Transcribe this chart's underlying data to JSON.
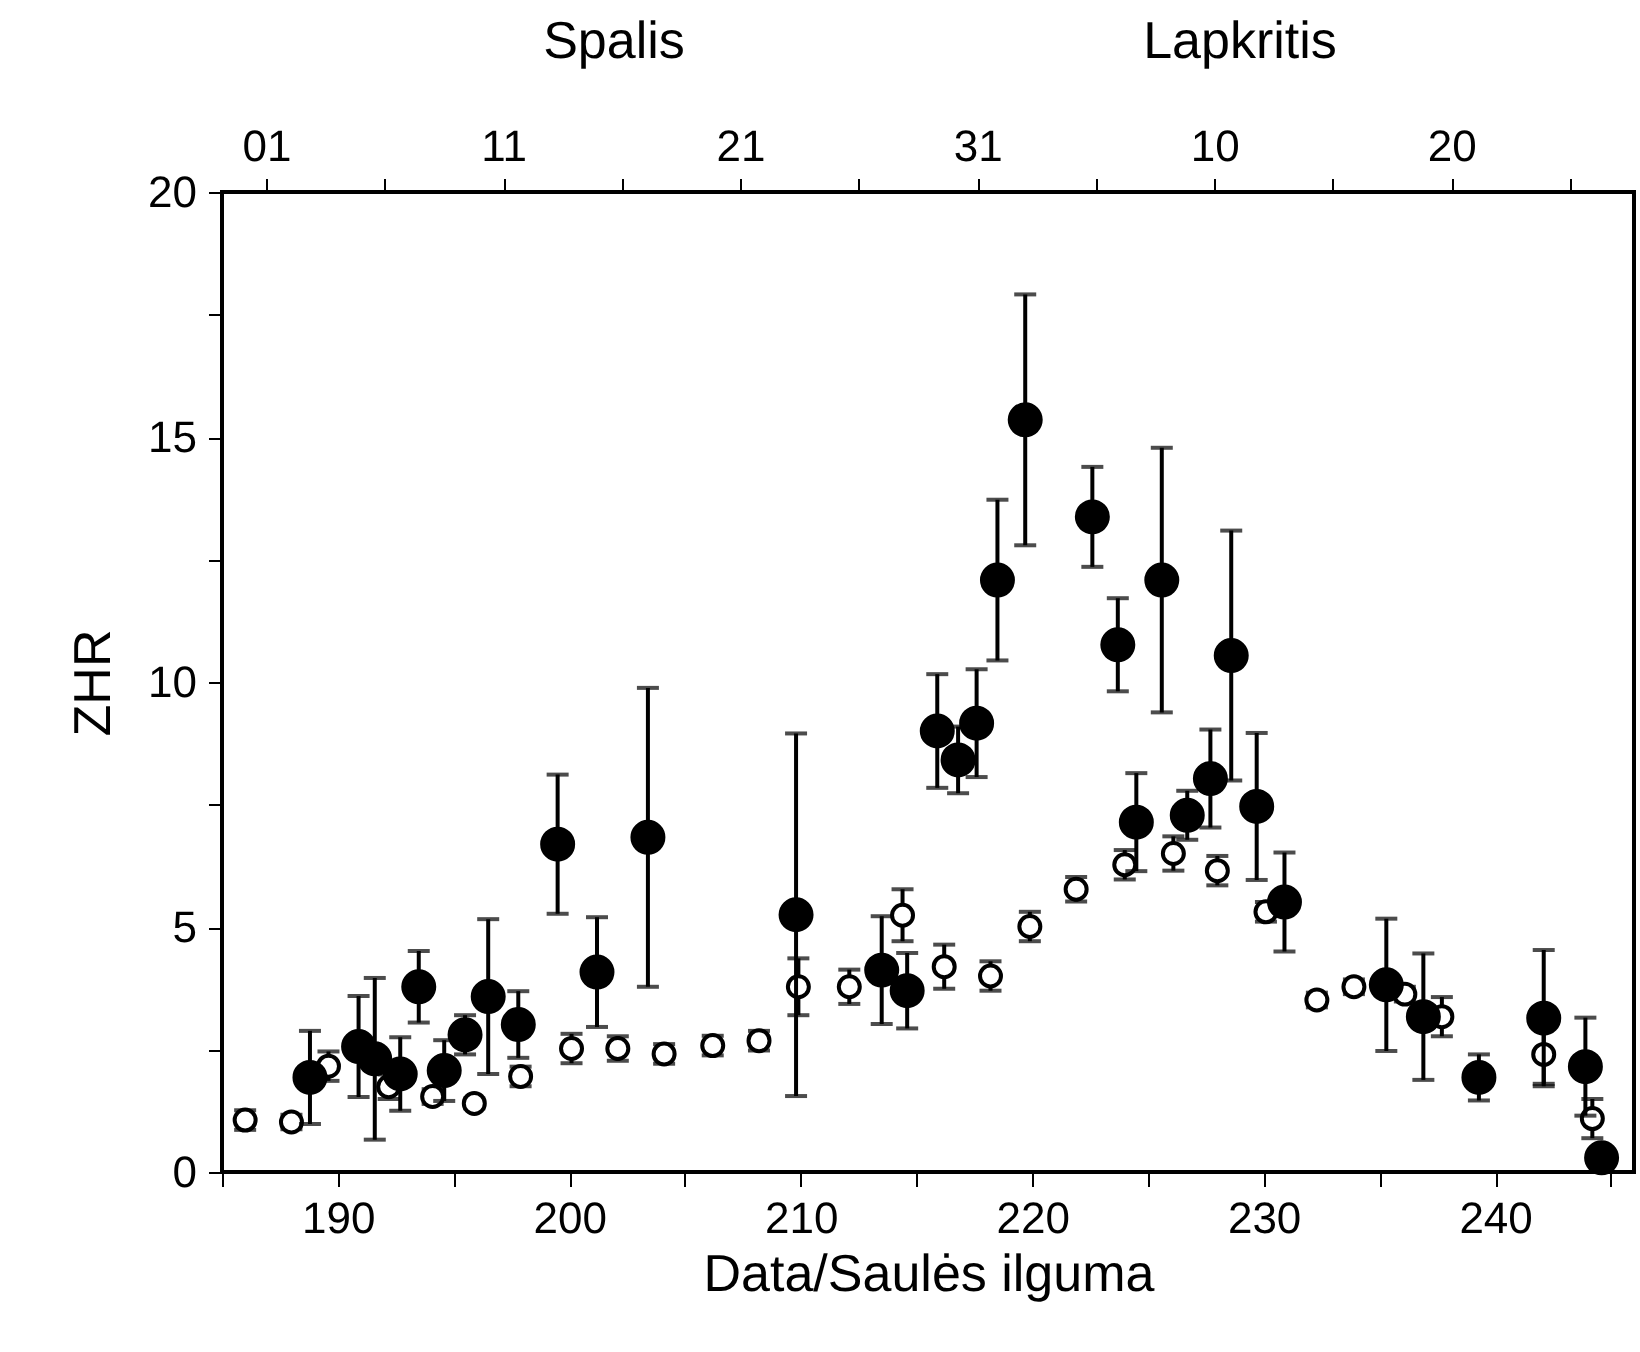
{
  "chart_data": {
    "type": "scatter",
    "xlabel": "Data/Saulės ilguma",
    "ylabel": "ZHR",
    "annotations": [
      "Spalis",
      "Lapkritis"
    ],
    "xlim": [
      185,
      246
    ],
    "ylim": [
      0,
      20
    ],
    "xticks": [
      {
        "value": 185,
        "label": null
      },
      190,
      {
        "value": 195,
        "label": null
      },
      200,
      {
        "value": 205,
        "label": null
      },
      210,
      {
        "value": 215,
        "label": null
      },
      220,
      {
        "value": 225,
        "label": null
      },
      230,
      {
        "value": 235,
        "label": null
      },
      240,
      {
        "value": 245,
        "label": null
      }
    ],
    "yticks": [
      0,
      {
        "value": 2.5,
        "label": null
      },
      5,
      {
        "value": 7.5,
        "label": null
      },
      10,
      {
        "value": 12.5,
        "label": null
      },
      15,
      {
        "value": 17.5,
        "label": null
      },
      20
    ],
    "x2lim": [
      "--09-29T03:30",
      "--11-27T17:00"
    ],
    "x2ticks": [
      {
        "value": "--10-01",
        "label": "01"
      },
      {
        "value": "--10-06",
        "label": null
      },
      {
        "value": "--10-11",
        "label": "11"
      },
      {
        "value": "--10-16",
        "label": null
      },
      {
        "value": "--10-21",
        "label": "21"
      },
      {
        "value": "--10-26",
        "label": null
      },
      {
        "value": "--10-31",
        "label": "31"
      },
      {
        "value": "--11-05",
        "label": null
      },
      {
        "value": "--11-10",
        "label": "10"
      },
      {
        "value": "--11-15",
        "label": null
      },
      {
        "value": "--11-20",
        "label": "20"
      },
      {
        "value": "--11-25",
        "label": null
      }
    ],
    "grid": false,
    "marker": "circle",
    "series": [
      {
        "color": "#ffffff",
        "x": [
          186.0,
          188.0,
          189.6,
          192.2,
          194.1,
          195.9,
          197.9,
          200.1,
          202.1,
          204.1,
          206.2,
          208.2,
          209.9,
          212.1,
          214.4,
          216.2,
          218.2,
          219.9,
          221.9,
          224.0,
          226.1,
          228.0,
          230.1,
          232.3,
          233.9,
          236.1,
          237.7,
          242.1,
          244.2
        ],
        "values": [
          1.06,
          1.02,
          2.16,
          1.74,
          1.54,
          1.4,
          1.95,
          2.52,
          2.52,
          2.41,
          2.58,
          2.68,
          3.78,
          3.78,
          5.24,
          4.19,
          4.0,
          5.01,
          5.77,
          6.27,
          6.5,
          6.15,
          5.31,
          3.51,
          3.78,
          3.63,
          3.17,
          2.4,
          1.09
        ],
        "errors": [
          0.2,
          0.15,
          0.3,
          0.25,
          0.15,
          0.1,
          0.2,
          0.3,
          0.25,
          0.2,
          0.2,
          0.2,
          0.58,
          0.35,
          0.53,
          0.45,
          0.3,
          0.3,
          0.25,
          0.3,
          0.35,
          0.3,
          0.2,
          0.15,
          0.15,
          0.15,
          0.4,
          0.6,
          0.4
        ]
      },
      {
        "color": "#000000",
        "x": [
          188.8,
          190.9,
          191.6,
          192.7,
          193.5,
          194.6,
          195.5,
          196.5,
          197.8,
          199.5,
          201.2,
          203.4,
          209.8,
          213.5,
          214.6,
          215.9,
          216.8,
          217.6,
          218.5,
          219.7,
          222.6,
          223.7,
          224.5,
          225.6,
          226.7,
          227.7,
          228.6,
          229.7,
          230.9,
          235.3,
          236.9,
          239.3,
          242.1,
          243.9,
          244.6
        ],
        "values": [
          1.93,
          2.56,
          2.31,
          2.0,
          3.78,
          2.07,
          2.8,
          3.58,
          3.01,
          6.69,
          4.08,
          6.83,
          5.25,
          4.12,
          3.7,
          9.0,
          8.41,
          9.16,
          12.08,
          15.35,
          13.37,
          10.76,
          7.14,
          12.08,
          7.28,
          8.03,
          10.54,
          7.46,
          5.51,
          3.82,
          3.17,
          1.93,
          3.14,
          2.15,
          0.29
        ],
        "errors": [
          0.95,
          1.03,
          1.65,
          0.75,
          0.73,
          0.62,
          0.4,
          1.58,
          0.68,
          1.42,
          1.12,
          3.05,
          3.7,
          1.1,
          0.77,
          1.16,
          0.68,
          1.1,
          1.64,
          2.56,
          1.02,
          0.95,
          1.0,
          2.7,
          0.5,
          1.0,
          2.55,
          1.5,
          1.01,
          1.35,
          1.29,
          0.47,
          1.39,
          1.0,
          null
        ]
      }
    ]
  }
}
